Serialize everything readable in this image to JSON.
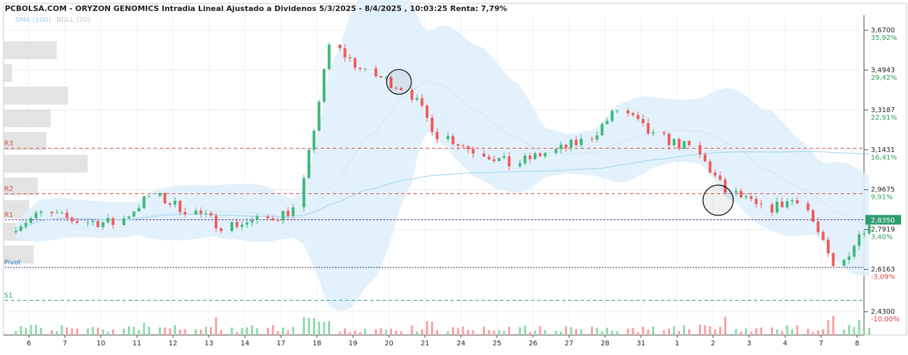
{
  "header": {
    "title": "PCBOLSA.COM - ORYZON GENOMICS Intradia Lineal Ajustado a Dividenos 5/3/2025 - 8/4/2025 , 10:03:25 Renta: 7,79%",
    "legend_sma": "SMA (100)",
    "legend_boll": "BOLL (20)"
  },
  "colors": {
    "up": "#3cb878",
    "down": "#f05a5a",
    "up_volume": "#8ed9a8",
    "down_volume": "#f5a0a0",
    "band_fill": "#dff0fb",
    "sma": "#9fd0ee",
    "r_levels": "#e04848",
    "pivot": "#3a7cc8",
    "s_levels": "#2e9e7a",
    "last_price_tag": "#2e9e6e",
    "pct_positive": "#2e9e5a",
    "pct_negative": "#e04040"
  },
  "chart_data": {
    "type": "candlestick",
    "title": "PCBOLSA.COM - ORYZON GENOMICS Intradia Lineal Ajustado a Dividenos 5/3/2025 - 8/4/2025 , 10:03:25 Renta: 7,79%",
    "ylim": [
      2.36,
      3.75
    ],
    "grid": true,
    "legend": [
      "SMA (100)",
      "BOLL (20)"
    ],
    "y_ticks": [
      {
        "value": 3.67,
        "label": "3,6700",
        "pct": "35,92%"
      },
      {
        "value": 3.4943,
        "label": "3,4943",
        "pct": "29,42%"
      },
      {
        "value": 3.3187,
        "label": "3,3187",
        "pct": "22,91%"
      },
      {
        "value": 3.1431,
        "label": "3,1431",
        "pct": "16,41%"
      },
      {
        "value": 2.9675,
        "label": "2,9675",
        "pct": "9,91%"
      },
      {
        "value": 2.7919,
        "label": "2,7919",
        "pct": "3,40%"
      },
      {
        "value": 2.6163,
        "label": "2,6163",
        "pct": "-3,09%"
      },
      {
        "value": 2.43,
        "label": "2,4300",
        "pct": "-10,00%"
      }
    ],
    "last_price": {
      "value": 2.835,
      "label": "2,8350"
    },
    "levels": [
      {
        "name": "R3",
        "value": 3.15
      },
      {
        "name": "R2",
        "value": 2.95
      },
      {
        "name": "R1",
        "value": 2.835
      },
      {
        "name": "Pivot",
        "value": 2.625
      },
      {
        "name": "S1",
        "value": 2.48
      }
    ],
    "dates": [
      "6",
      "7",
      "10",
      "11",
      "12",
      "13",
      "14",
      "17",
      "18",
      "19",
      "20",
      "21",
      "24",
      "25",
      "26",
      "27",
      "28",
      "31",
      "1",
      "2",
      "3",
      "4",
      "7",
      "8"
    ],
    "daily_closes": [
      2.86,
      2.83,
      2.82,
      2.94,
      2.88,
      2.81,
      2.83,
      2.88,
      3.6,
      3.48,
      3.42,
      3.21,
      3.14,
      3.08,
      3.13,
      3.18,
      3.32,
      3.2,
      3.15,
      2.96,
      2.88,
      2.93,
      2.62,
      2.835
    ],
    "volume_profile": [
      0.62,
      0.1,
      0.75,
      0.55,
      0.5,
      0.98,
      0.4,
      0.3,
      0.3,
      0.35
    ]
  }
}
